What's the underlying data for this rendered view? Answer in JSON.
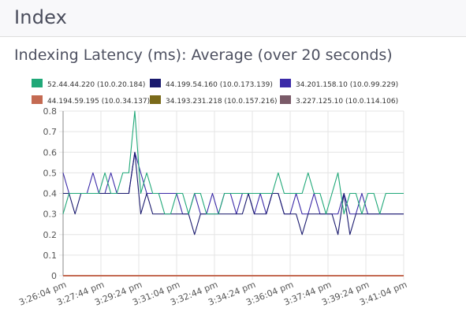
{
  "header": {
    "title": "Index"
  },
  "panel": {
    "title": "Indexing Latency (ms): Average (over 20 seconds)"
  },
  "colors": {
    "grid": "#e4e4e4",
    "axis": "#888888",
    "page_bg": "#f8f8fa"
  },
  "chart_data": {
    "type": "line",
    "title": "",
    "xlabel": "",
    "ylabel": "",
    "ylim": [
      0,
      0.8
    ],
    "y_ticks": [
      "0",
      "0.1",
      "0.2",
      "0.3",
      "0.4",
      "0.5",
      "0.6",
      "0.7",
      "0.8"
    ],
    "x_tick_labels": [
      "3:26:04 pm",
      "3:27:44 pm",
      "3:29:24 pm",
      "3:31:04 pm",
      "3:32:44 pm",
      "3:34:24 pm",
      "3:36:04 pm",
      "3:37:44 pm",
      "3:39:24 pm",
      "3:41:04 pm"
    ],
    "x_range": [
      "3:26:04 pm",
      "3:41:04 pm"
    ],
    "grid": true,
    "legend_position": "top",
    "series": [
      {
        "name": "52.44.44.220 (10.0.20.184)",
        "color": "#20a878",
        "values": [
          0.3,
          0.4,
          0.4,
          0.4,
          0.4,
          0.4,
          0.4,
          0.5,
          0.4,
          0.4,
          0.5,
          0.5,
          0.8,
          0.4,
          0.5,
          0.4,
          0.4,
          0.3,
          0.3,
          0.4,
          0.4,
          0.3,
          0.4,
          0.4,
          0.3,
          0.3,
          0.3,
          0.4,
          0.4,
          0.4,
          0.4,
          0.4,
          0.4,
          0.4,
          0.4,
          0.4,
          0.5,
          0.4,
          0.4,
          0.4,
          0.4,
          0.5,
          0.4,
          0.4,
          0.3,
          0.4,
          0.5,
          0.3,
          0.4,
          0.4,
          0.3,
          0.4,
          0.4,
          0.3,
          0.4,
          0.4,
          0.4,
          0.4
        ]
      },
      {
        "name": "44.199.54.160 (10.0.173.139)",
        "color": "#1a1a6e",
        "values": [
          0.4,
          0.4,
          0.3,
          0.4,
          0.4,
          0.4,
          0.4,
          0.4,
          0.4,
          0.4,
          0.4,
          0.4,
          0.6,
          0.3,
          0.4,
          0.3,
          0.3,
          0.3,
          0.3,
          0.3,
          0.3,
          0.3,
          0.2,
          0.3,
          0.3,
          0.3,
          0.3,
          0.3,
          0.3,
          0.3,
          0.3,
          0.4,
          0.3,
          0.3,
          0.3,
          0.4,
          0.4,
          0.3,
          0.3,
          0.3,
          0.2,
          0.3,
          0.3,
          0.3,
          0.3,
          0.3,
          0.2,
          0.4,
          0.2,
          0.3,
          0.3,
          0.3,
          0.3,
          0.3,
          0.3,
          0.3,
          0.3,
          0.3
        ]
      },
      {
        "name": "34.201.158.10 (10.0.99.229)",
        "color": "#3b2aa8",
        "values": [
          0.5,
          0.4,
          0.4,
          0.4,
          0.4,
          0.5,
          0.4,
          0.4,
          0.5,
          0.4,
          0.4,
          0.4,
          0.6,
          0.5,
          0.4,
          0.4,
          0.4,
          0.4,
          0.4,
          0.4,
          0.3,
          0.3,
          0.4,
          0.3,
          0.3,
          0.4,
          0.3,
          0.4,
          0.4,
          0.3,
          0.4,
          0.4,
          0.3,
          0.4,
          0.3,
          0.4,
          0.4,
          0.3,
          0.3,
          0.4,
          0.3,
          0.3,
          0.4,
          0.3,
          0.3,
          0.3,
          0.3,
          0.4,
          0.3,
          0.3,
          0.4,
          0.3,
          0.3,
          0.3,
          0.3,
          0.3,
          0.3,
          0.3
        ]
      },
      {
        "name": "44.194.59.195 (10.0.34.137)",
        "color": "#c46a52",
        "values": [
          0,
          0,
          0,
          0,
          0,
          0,
          0,
          0,
          0,
          0,
          0,
          0,
          0,
          0,
          0,
          0,
          0,
          0,
          0,
          0,
          0,
          0,
          0,
          0,
          0,
          0,
          0,
          0,
          0,
          0,
          0,
          0,
          0,
          0,
          0,
          0,
          0,
          0,
          0,
          0,
          0,
          0,
          0,
          0,
          0,
          0,
          0,
          0,
          0,
          0,
          0,
          0,
          0,
          0,
          0,
          0,
          0,
          0
        ]
      },
      {
        "name": "34.193.231.218 (10.0.157.216)",
        "color": "#7a6a1a",
        "values": [
          0,
          0,
          0,
          0,
          0,
          0,
          0,
          0,
          0,
          0,
          0,
          0,
          0,
          0,
          0,
          0,
          0,
          0,
          0,
          0,
          0,
          0,
          0,
          0,
          0,
          0,
          0,
          0,
          0,
          0,
          0,
          0,
          0,
          0,
          0,
          0,
          0,
          0,
          0,
          0,
          0,
          0,
          0,
          0,
          0,
          0,
          0,
          0,
          0,
          0,
          0,
          0,
          0,
          0,
          0,
          0,
          0,
          0
        ]
      },
      {
        "name": "3.227.125.10 (10.0.114.106)",
        "color": "#7a5a68",
        "values": [
          0,
          0,
          0,
          0,
          0,
          0,
          0,
          0,
          0,
          0,
          0,
          0,
          0,
          0,
          0,
          0,
          0,
          0,
          0,
          0,
          0,
          0,
          0,
          0,
          0,
          0,
          0,
          0,
          0,
          0,
          0,
          0,
          0,
          0,
          0,
          0,
          0,
          0,
          0,
          0,
          0,
          0,
          0,
          0,
          0,
          0,
          0,
          0,
          0,
          0,
          0,
          0,
          0,
          0,
          0,
          0,
          0,
          0
        ]
      }
    ]
  }
}
